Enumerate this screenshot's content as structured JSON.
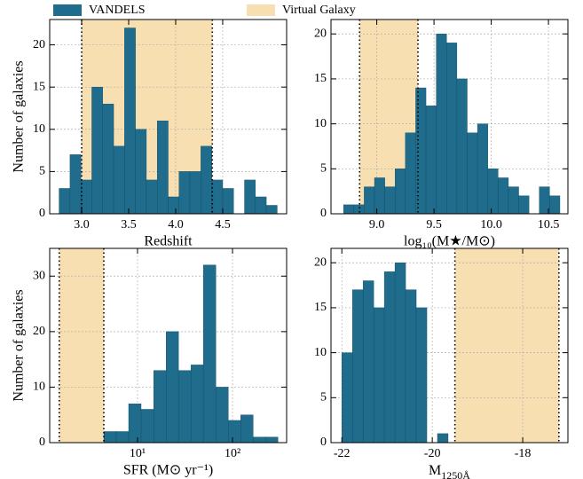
{
  "legend": [
    {
      "name": "VANDELS",
      "color": "#1f6c8c"
    },
    {
      "name": "Virtual Galaxy",
      "color": "#f7dfb2"
    }
  ],
  "chart_data": [
    {
      "type": "histogram",
      "xlabel": "Redshift",
      "ylabel": "Number of galaxies",
      "bins": [
        2.76,
        2.876,
        2.992,
        3.108,
        3.224,
        3.34,
        3.456,
        3.572,
        3.688,
        3.804,
        3.92,
        4.036,
        4.152,
        4.268,
        4.384,
        4.5,
        4.616,
        4.732,
        4.848,
        4.964,
        5.08
      ],
      "counts": [
        3,
        7,
        4,
        15,
        13,
        8,
        22,
        10,
        4,
        11,
        2,
        5,
        5,
        8,
        4,
        3,
        0,
        4,
        2,
        1
      ],
      "shade": [
        3.0,
        4.39
      ],
      "xlim": [
        2.66,
        5.18
      ],
      "xticks": [
        {
          "value": 3.0,
          "label": "3.0"
        },
        {
          "value": 3.5,
          "label": "3.5"
        },
        {
          "value": 4.0,
          "label": "4.0"
        },
        {
          "value": 4.5,
          "label": "4.5"
        }
      ],
      "ylim": [
        0,
        23
      ],
      "yticks": [
        0,
        5,
        10,
        15,
        20
      ],
      "grid": true
    },
    {
      "type": "histogram",
      "xlabel": "log₁₀(M★/M⊙)",
      "bins": [
        8.71,
        8.8,
        8.89,
        8.98,
        9.07,
        9.16,
        9.25,
        9.34,
        9.43,
        9.52,
        9.61,
        9.7,
        9.79,
        9.88,
        9.97,
        10.06,
        10.15,
        10.24,
        10.33,
        10.42,
        10.51,
        10.6
      ],
      "counts": [
        1,
        1,
        3,
        4,
        3,
        5,
        9,
        14,
        12,
        20,
        19,
        15,
        9,
        10,
        5,
        4,
        3,
        2,
        0,
        3,
        2
      ],
      "shade": [
        8.85,
        9.36
      ],
      "xlim": [
        8.6,
        10.67
      ],
      "xticks": [
        {
          "value": 9.0,
          "label": "9.0"
        },
        {
          "value": 9.5,
          "label": "9.5"
        },
        {
          "value": 10.0,
          "label": "10.0"
        },
        {
          "value": 10.5,
          "label": "10.5"
        }
      ],
      "ylim": [
        0,
        21.6
      ],
      "yticks": [
        0,
        5,
        10,
        15,
        20
      ],
      "grid": true
    },
    {
      "type": "histogram",
      "xlabel": "SFR (M⊙ yr⁻¹)",
      "ylabel": "Number of galaxies",
      "xscale": "log",
      "bins": [
        4.42,
        5.97,
        8.07,
        10.9,
        14.8,
        20.0,
        27.0,
        36.5,
        49.3,
        66.7,
        90.2,
        122,
        165,
        223,
        301
      ],
      "counts": [
        2,
        2,
        7,
        6,
        13,
        20,
        13,
        14,
        32,
        10,
        4,
        5,
        1,
        1
      ],
      "shade": [
        1.5,
        4.42
      ],
      "xlim": [
        1.19,
        371
      ],
      "xticks": [
        {
          "value": 10,
          "label": "10¹"
        },
        {
          "value": 100,
          "label": "10²"
        }
      ],
      "ylim": [
        0,
        35
      ],
      "yticks": [
        0,
        10,
        20,
        30
      ],
      "grid": true
    },
    {
      "type": "histogram",
      "xlabel": {
        "main": "M",
        "sub": "1250Å"
      },
      "bins": [
        -22,
        -21.765,
        -21.53,
        -21.295,
        -21.06,
        -20.825,
        -20.59,
        -20.355,
        -20.12,
        -19.885,
        -19.65
      ],
      "counts": [
        10,
        17,
        18,
        15,
        19,
        20,
        17,
        15,
        0,
        1
      ],
      "shade": [
        -19.5,
        -17.2
      ],
      "xlim": [
        -22.24,
        -17.0
      ],
      "xticks": [
        -22,
        -20,
        -18
      ],
      "ylim": [
        0,
        21.6
      ],
      "yticks": [
        0,
        5,
        10,
        15,
        20
      ],
      "grid": true
    }
  ]
}
